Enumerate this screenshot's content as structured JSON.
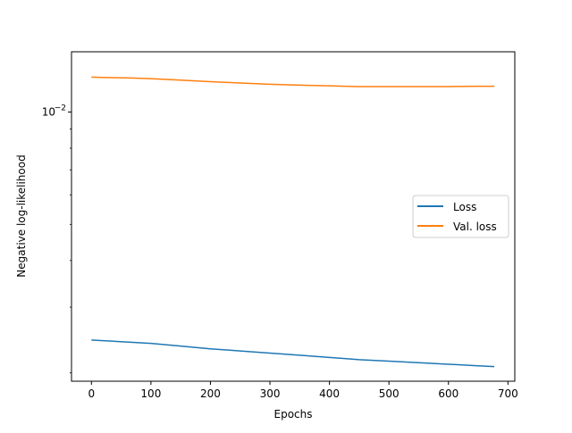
{
  "chart_data": {
    "type": "line",
    "xlabel": "Epochs",
    "ylabel": "Negative log-likelihood",
    "x_range": [
      -33.5,
      711.5
    ],
    "y_range": [
      0.0019,
      0.0145
    ],
    "y_scale": "log",
    "x_ticks": [
      0,
      100,
      200,
      300,
      400,
      500,
      600,
      700
    ],
    "x_tick_labels": [
      "0",
      "100",
      "200",
      "300",
      "400",
      "500",
      "600",
      "700"
    ],
    "y_ticks": [
      0.01
    ],
    "y_tick_labels": {
      "base": "10",
      "exponent": "−2"
    },
    "grid": false,
    "legend_position": "center-right",
    "series": [
      {
        "name": "Loss",
        "color": "#1f77b4",
        "x": [
          0,
          20,
          40,
          60,
          80,
          100,
          150,
          200,
          250,
          300,
          350,
          400,
          450,
          500,
          550,
          600,
          650,
          677
        ],
        "y": [
          0.00245,
          0.00244,
          0.00243,
          0.00242,
          0.00241,
          0.0024,
          0.00236,
          0.00232,
          0.00229,
          0.00226,
          0.00223,
          0.0022,
          0.00217,
          0.00215,
          0.00213,
          0.00211,
          0.00209,
          0.00208
        ]
      },
      {
        "name": "Val. loss",
        "color": "#ff7f0e",
        "x": [
          0,
          20,
          40,
          60,
          80,
          100,
          120,
          150,
          200,
          250,
          300,
          350,
          400,
          450,
          500,
          550,
          600,
          650,
          677
        ],
        "y": [
          0.0124,
          0.01238,
          0.01236,
          0.01234,
          0.01232,
          0.01228,
          0.01224,
          0.01217,
          0.01206,
          0.01196,
          0.01187,
          0.0118,
          0.01175,
          0.0117,
          0.0117,
          0.0117,
          0.0117,
          0.01172,
          0.01172
        ]
      }
    ]
  }
}
